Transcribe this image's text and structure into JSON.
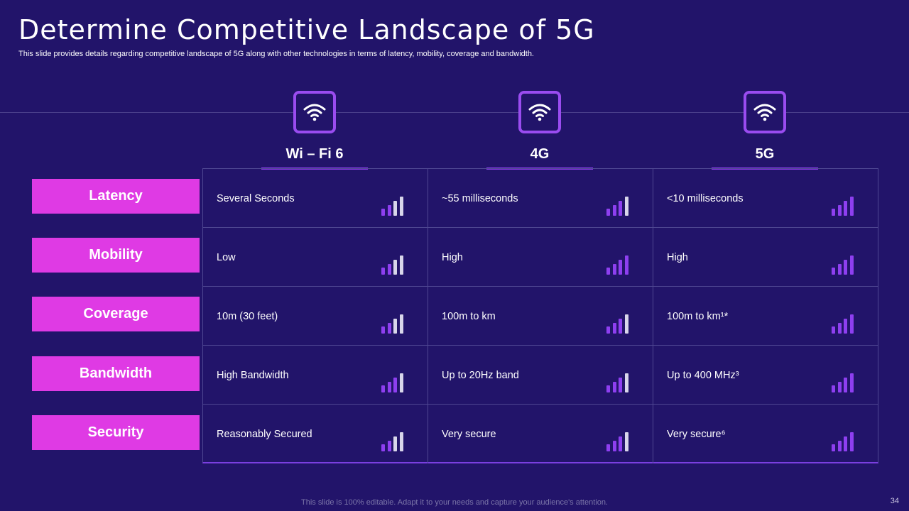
{
  "slide": {
    "title": "Determine Competitive Landscape of 5G",
    "subtitle": "This slide provides details regarding competitive landscape of 5G along with other technologies in terms of latency, mobility, coverage and bandwidth.",
    "footer": "This slide is 100% editable. Adapt it to your needs and capture your audience's attention.",
    "page_number": "34"
  },
  "colors": {
    "background": "#22146a",
    "label_bg": "#df3ae4",
    "accent": "#8e3ff0",
    "bar_active": "#8e3ff0",
    "bar_inactive": "#d8d6ea"
  },
  "technologies": [
    {
      "label": "Wi – Fi 6",
      "icon": "wifi-icon"
    },
    {
      "label": "4G",
      "icon": "wifi-icon"
    },
    {
      "label": "5G",
      "icon": "wifi-icon"
    }
  ],
  "rows": [
    {
      "label": "Latency",
      "cells": [
        {
          "text": "Several Seconds",
          "level": 2
        },
        {
          "text": "~55 milliseconds",
          "level": 3
        },
        {
          "text": "<10 milliseconds",
          "level": 4
        }
      ]
    },
    {
      "label": "Mobility",
      "cells": [
        {
          "text": "Low",
          "level": 2
        },
        {
          "text": "High",
          "level": 4
        },
        {
          "text": "High",
          "level": 4
        }
      ]
    },
    {
      "label": "Coverage",
      "cells": [
        {
          "text": "10m (30 feet)",
          "level": 2
        },
        {
          "text": "100m to km",
          "level": 3
        },
        {
          "text": "100m to km¹*",
          "level": 4
        }
      ]
    },
    {
      "label": "Bandwidth",
      "cells": [
        {
          "text": "High Bandwidth",
          "level": 3
        },
        {
          "text": "Up to 20Hz band",
          "level": 3
        },
        {
          "text": "Up to 400 MHz³",
          "level": 4
        }
      ]
    },
    {
      "label": "Security",
      "cells": [
        {
          "text": "Reasonably Secured",
          "level": 2
        },
        {
          "text": "Very secure",
          "level": 3
        },
        {
          "text": "Very secure⁶",
          "level": 4
        }
      ]
    }
  ]
}
